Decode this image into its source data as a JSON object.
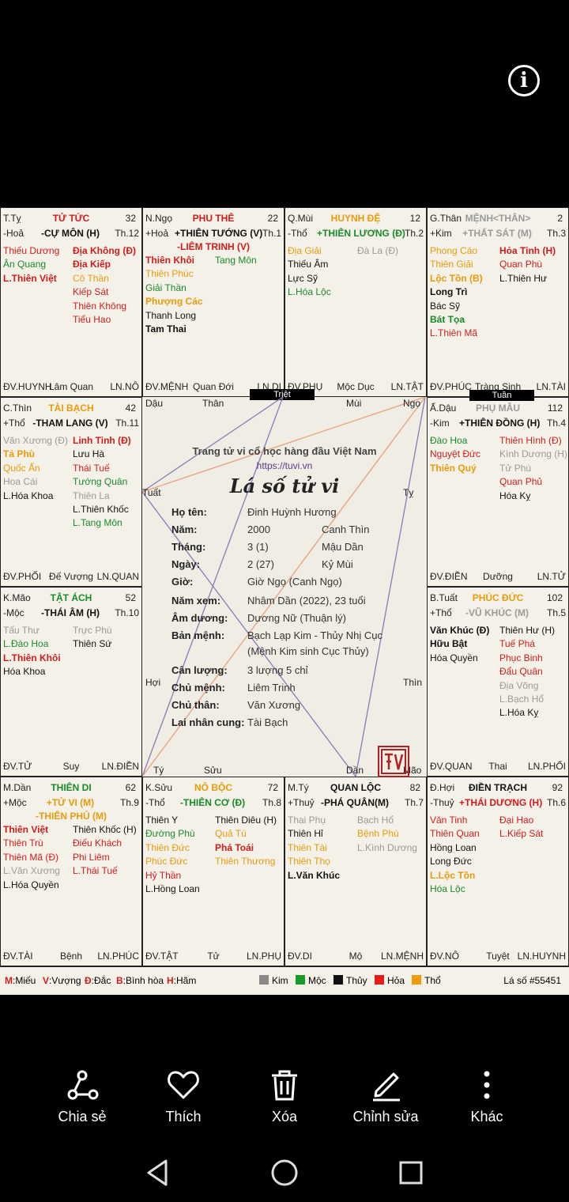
{
  "info_icon": "info-icon",
  "markers": {
    "triet": "Triệt",
    "tuan": "Tuần"
  },
  "cells": [
    {
      "branch": "T.Tỵ",
      "element": "-Hoả",
      "palace": "TỬ TỨC",
      "palace_color": "red",
      "num": "32",
      "th": "Th.12",
      "main": "-CỰ MÔN (H)",
      "main_color": "black",
      "left": [
        {
          "t": "Thiếu Dương",
          "c": "red"
        },
        {
          "t": "Ân Quang",
          "c": "green"
        },
        {
          "t": "L.Thiên Việt",
          "c": "red",
          "b": true
        }
      ],
      "right": [
        {
          "t": "Địa Không (Đ)",
          "c": "red",
          "b": true
        },
        {
          "t": "Địa Kiếp",
          "c": "red",
          "b": true
        },
        {
          "t": "Cô Thần",
          "c": "orange"
        },
        {
          "t": "Kiếp Sát",
          "c": "red"
        },
        {
          "t": "Thiên Không",
          "c": "red"
        },
        {
          "t": "Tiểu Hao",
          "c": "red"
        }
      ],
      "dv": "ĐV.HUYNH",
      "mid": "Lâm Quan",
      "ln": "LN.NÔ"
    },
    {
      "branch": "N.Ngọ",
      "element": "+Hoả",
      "palace": "PHU THÊ",
      "palace_color": "red",
      "num": "22",
      "th": "Th.1",
      "main": "+THIÊN TƯỚNG (V)",
      "main_color": "black",
      "main2": "-LIÊM TRINH (V)",
      "main2_color": "red",
      "left": [
        {
          "t": "Thiên Khôi",
          "c": "red",
          "b": true
        },
        {
          "t": "Thiên Phúc",
          "c": "orange"
        },
        {
          "t": "Giải Thần",
          "c": "green"
        },
        {
          "t": "Phượng Các",
          "c": "orange",
          "b": true
        },
        {
          "t": "Thanh Long",
          "c": "black"
        },
        {
          "t": "Tam Thai",
          "c": "black",
          "b": true
        }
      ],
      "right": [
        {
          "t": "Tang Môn",
          "c": "green"
        }
      ],
      "dv": "ĐV.MỆNH",
      "mid": "Quan Đới",
      "ln": "LN.DI"
    },
    {
      "branch": "Q.Mùi",
      "element": "-Thổ",
      "palace": "HUYNH ĐỆ",
      "palace_color": "orange",
      "num": "12",
      "th": "Th.2",
      "main": "+THIÊN LƯƠNG (Đ)",
      "main_color": "green",
      "left": [
        {
          "t": "Địa Giải",
          "c": "orange"
        },
        {
          "t": "Thiếu Âm",
          "c": "black"
        },
        {
          "t": "Lực Sỹ",
          "c": "black"
        },
        {
          "t": "L.Hóa Lộc",
          "c": "green"
        }
      ],
      "right": [
        {
          "t": "Đà La (Đ)",
          "c": "gray"
        }
      ],
      "dv": "ĐV.PHỤ",
      "mid": "Mộc Dục",
      "ln": "LN.TẬT"
    },
    {
      "branch": "G.Thân",
      "element": "+Kim",
      "palace": "MỆNH<THÂN>",
      "palace_color": "gray",
      "num": "2",
      "th": "Th.3",
      "main": "+THẤT SÁT (M)",
      "main_color": "gray",
      "left": [
        {
          "t": "Phong Cáo",
          "c": "orange"
        },
        {
          "t": "Thiên Giải",
          "c": "orange"
        },
        {
          "t": "Lộc Tồn (B)",
          "c": "orange",
          "b": true
        },
        {
          "t": "Long Trì",
          "c": "black",
          "b": true
        },
        {
          "t": "Bác Sỹ",
          "c": "black"
        },
        {
          "t": "Bát Tọa",
          "c": "green",
          "b": true
        },
        {
          "t": "L.Thiên Mã",
          "c": "red"
        }
      ],
      "right": [
        {
          "t": "Hỏa Tinh (H)",
          "c": "red",
          "b": true
        },
        {
          "t": "Quan Phù",
          "c": "red"
        },
        {
          "t": "L.Thiên Hư",
          "c": "black"
        }
      ],
      "dv": "ĐV.PHÚC",
      "mid": "Tràng Sinh",
      "ln": "LN.TÀI"
    },
    {
      "branch": "C.Thìn",
      "element": "+Thổ",
      "palace": "TÀI BẠCH",
      "palace_color": "orange",
      "num": "42",
      "th": "Th.11",
      "main": "-THAM LANG (V)",
      "main_color": "black",
      "left": [
        {
          "t": "Văn Xương (Đ)",
          "c": "gray"
        },
        {
          "t": "Tả Phù",
          "c": "orange",
          "b": true
        },
        {
          "t": "Quốc Ấn",
          "c": "orange"
        },
        {
          "t": "Hoa Cái",
          "c": "gray"
        },
        {
          "t": "L.Hóa Khoa",
          "c": "black"
        }
      ],
      "right": [
        {
          "t": "Linh Tinh (Đ)",
          "c": "red",
          "b": true
        },
        {
          "t": "Lưu Hà",
          "c": "black"
        },
        {
          "t": "Thái Tuế",
          "c": "red"
        },
        {
          "t": "Tướng Quân",
          "c": "green"
        },
        {
          "t": "Thiên La",
          "c": "gray"
        },
        {
          "t": "L.Thiên Khốc",
          "c": "black"
        },
        {
          "t": "L.Tang Môn",
          "c": "green"
        }
      ],
      "dv": "ĐV.PHỐI",
      "mid": "Đế Vượng",
      "ln": "LN.QUAN"
    },
    {
      "branch": "Ấ.Dậu",
      "element": "-Kim",
      "palace": "PHỤ MẪU",
      "palace_color": "gray",
      "num": "112",
      "th": "Th.4",
      "main": "+THIÊN ĐỒNG (H)",
      "main_color": "black",
      "left": [
        {
          "t": "Đào Hoa",
          "c": "green"
        },
        {
          "t": "Nguyệt Đức",
          "c": "red"
        },
        {
          "t": "Thiên Quý",
          "c": "orange",
          "b": true
        }
      ],
      "right": [
        {
          "t": "Thiên Hình (Đ)",
          "c": "red"
        },
        {
          "t": "Kình Dương (H)",
          "c": "gray"
        },
        {
          "t": "Tử Phù",
          "c": "gray"
        },
        {
          "t": "Quan Phủ",
          "c": "red"
        },
        {
          "t": "Hóa Kỵ",
          "c": "black"
        }
      ],
      "dv": "ĐV.ĐIỀN",
      "mid": "Dưỡng",
      "ln": "LN.TỬ"
    },
    {
      "branch": "K.Mão",
      "element": "-Mộc",
      "palace": "TẬT ÁCH",
      "palace_color": "green",
      "num": "52",
      "th": "Th.10",
      "main": "-THÁI ÂM (H)",
      "main_color": "black",
      "left": [
        {
          "t": "Tấu Thư",
          "c": "gray"
        },
        {
          "t": "L.Đào Hoa",
          "c": "green"
        },
        {
          "t": "L.Thiên Khôi",
          "c": "red",
          "b": true
        },
        {
          "t": "Hóa Khoa",
          "c": "black"
        }
      ],
      "right": [
        {
          "t": "Trực Phù",
          "c": "gray"
        },
        {
          "t": "Thiên Sứ",
          "c": "black"
        }
      ],
      "dv": "ĐV.TỬ",
      "mid": "Suy",
      "ln": "LN.ĐIỀN"
    },
    {
      "branch": "B.Tuất",
      "element": "+Thổ",
      "palace": "PHÚC ĐỨC",
      "palace_color": "orange",
      "num": "102",
      "th": "Th.5",
      "main": "-VŨ KHÚC (M)",
      "main_color": "gray",
      "left": [
        {
          "t": "Văn Khúc (Đ)",
          "c": "black",
          "b": true
        },
        {
          "t": "Hữu Bật",
          "c": "black",
          "b": true
        },
        {
          "t": "Hóa Quyền",
          "c": "black"
        }
      ],
      "right": [
        {
          "t": "Thiên Hư (H)",
          "c": "black"
        },
        {
          "t": "Tuế Phá",
          "c": "red"
        },
        {
          "t": "Phục Binh",
          "c": "red"
        },
        {
          "t": "Đẩu Quân",
          "c": "red"
        },
        {
          "t": "Địa Võng",
          "c": "gray"
        },
        {
          "t": "L.Bạch Hổ",
          "c": "gray"
        },
        {
          "t": "L.Hóa Kỵ",
          "c": "black"
        }
      ],
      "dv": "ĐV.QUAN",
      "mid": "Thai",
      "ln": "LN.PHỐI"
    },
    {
      "branch": "M.Dần",
      "element": "+Mộc",
      "palace": "THIÊN DI",
      "palace_color": "green",
      "num": "62",
      "th": "Th.9",
      "main": "+TỬ VI (M)",
      "main_color": "orange",
      "main2": "-THIÊN PHỦ (M)",
      "main2_color": "orange",
      "left": [
        {
          "t": "Thiên Việt",
          "c": "red",
          "b": true
        },
        {
          "t": "Thiên Trù",
          "c": "red"
        },
        {
          "t": "Thiên Mã (Đ)",
          "c": "red"
        },
        {
          "t": "L.Văn Xương",
          "c": "gray"
        },
        {
          "t": "L.Hóa Quyền",
          "c": "black"
        }
      ],
      "right": [
        {
          "t": "Thiên Khốc (H)",
          "c": "black"
        },
        {
          "t": "Điếu Khách",
          "c": "red"
        },
        {
          "t": "Phi Liêm",
          "c": "red"
        },
        {
          "t": "L.Thái Tuế",
          "c": "red"
        }
      ],
      "dv": "ĐV.TÀI",
      "mid": "Bệnh",
      "ln": "LN.PHÚC"
    },
    {
      "branch": "K.Sửu",
      "element": "-Thổ",
      "palace": "NÔ BỘC",
      "palace_color": "orange",
      "num": "72",
      "th": "Th.8",
      "main": "-THIÊN CƠ (Đ)",
      "main_color": "green",
      "left": [
        {
          "t": "Thiên Y",
          "c": "black"
        },
        {
          "t": "Đường Phù",
          "c": "green"
        },
        {
          "t": "Thiên Đức",
          "c": "orange"
        },
        {
          "t": "Phúc Đức",
          "c": "orange"
        },
        {
          "t": "Hỷ Thần",
          "c": "red"
        },
        {
          "t": "L.Hồng Loan",
          "c": "black"
        }
      ],
      "right": [
        {
          "t": "Thiên Diêu (H)",
          "c": "black"
        },
        {
          "t": "Quả Tú",
          "c": "orange"
        },
        {
          "t": "Phá Toái",
          "c": "red",
          "b": true
        },
        {
          "t": "Thiên Thương",
          "c": "orange"
        }
      ],
      "dv": "ĐV.TẬT",
      "mid": "Tử",
      "ln": "LN.PHỤ"
    },
    {
      "branch": "M.Tý",
      "element": "+Thuỷ",
      "palace": "QUAN LỘC",
      "palace_color": "black",
      "num": "82",
      "th": "Th.7",
      "main": "-PHÁ QUÂN(M)",
      "main_color": "black",
      "left": [
        {
          "t": "Thai Phụ",
          "c": "gray"
        },
        {
          "t": "Thiên Hỉ",
          "c": "black"
        },
        {
          "t": "Thiên Tài",
          "c": "orange"
        },
        {
          "t": "Thiên Thọ",
          "c": "orange"
        },
        {
          "t": "L.Văn Khúc",
          "c": "black",
          "b": true
        }
      ],
      "right": [
        {
          "t": "Bạch Hổ",
          "c": "gray"
        },
        {
          "t": "Bệnh Phù",
          "c": "orange"
        },
        {
          "t": "L.Kình Dương",
          "c": "gray"
        }
      ],
      "dv": "ĐV.DI",
      "mid": "Mộ",
      "ln": "LN.MỆNH"
    },
    {
      "branch": "Đ.Hợi",
      "element": "-Thuỷ",
      "palace": "ĐIỀN TRẠCH",
      "palace_color": "black",
      "num": "92",
      "th": "Th.6",
      "main": "+THÁI DƯƠNG (H)",
      "main_color": "red",
      "left": [
        {
          "t": "Văn Tinh",
          "c": "red"
        },
        {
          "t": "Thiên Quan",
          "c": "red"
        },
        {
          "t": "Hồng Loan",
          "c": "black"
        },
        {
          "t": "Long Đức",
          "c": "black"
        },
        {
          "t": "L.Lộc Tồn",
          "c": "orange",
          "b": true
        },
        {
          "t": "Hóa Lộc",
          "c": "green"
        }
      ],
      "right": [
        {
          "t": "Đại Hao",
          "c": "red"
        },
        {
          "t": "L.Kiếp Sát",
          "c": "red"
        }
      ],
      "dv": "ĐV.NÔ",
      "mid": "Tuyệt",
      "ln": "LN.HUYNH"
    }
  ],
  "center": {
    "branches": {
      "dau": "Dậu",
      "than": "Thân",
      "mui": "Mùi",
      "ngo": "Ngọ",
      "tuat": "Tuất",
      "ty_top": "Tỵ",
      "hoi": "Hợi",
      "thin": "Thìn",
      "ty_bottom": "Tý",
      "suu": "Sửu",
      "dan": "Dần",
      "mao": "Mão"
    },
    "site": "Trang tử vi cổ học hàng đầu Việt Nam",
    "url": "https://tuvi.vn",
    "heading": "Lá số tử vi",
    "rows": [
      {
        "label": "Họ tên:",
        "value": "Đinh Huỳnh Hương",
        "value2": ""
      },
      {
        "label": "Năm:",
        "value": "2000",
        "value2": "Canh Thìn"
      },
      {
        "label": "Tháng:",
        "value": "3 (1)",
        "value2": "Mậu Dần"
      },
      {
        "label": "Ngày:",
        "value": "2 (27)",
        "value2": "Kỷ Mùi"
      },
      {
        "label": "Giờ:",
        "value": "Giờ Ngọ (Canh Ngọ)",
        "value2": ""
      },
      {
        "label": "Năm xem:",
        "value": "Nhâm Dần (2022), 23 tuổi",
        "value2": ""
      },
      {
        "label": "Âm dương:",
        "value": "Dương Nữ (Thuận lý)",
        "value2": ""
      },
      {
        "label": "Bản mệnh:",
        "value": "Bạch Lạp Kim - Thủy Nhị Cục",
        "value2": ""
      },
      {
        "label": "",
        "value": "(Mệnh Kim sinh Cục Thủy)",
        "value2": ""
      },
      {
        "label": "Cân lượng:",
        "value": "3 lượng 5 chỉ",
        "value2": ""
      },
      {
        "label": "Chủ mệnh:",
        "value": "Liêm Trinh",
        "value2": ""
      },
      {
        "label": "Chủ thân:",
        "value": "Văn Xương",
        "value2": ""
      },
      {
        "label": "Lai nhân cung:",
        "value": "Tài Bạch",
        "value2": ""
      }
    ],
    "seal_text": "TVH",
    "lines_color_purple": "#8a7ab8",
    "lines_color_orange": "#e8a07a"
  },
  "legend": {
    "m": "M",
    "m_text": ":Miếu",
    "v": "V",
    "v_text": ":Vượng",
    "d": "Đ",
    "d_text": ":Đắc",
    "b": "B",
    "b_text": ":Bình hòa",
    "h": "H",
    "h_text": ":Hãm",
    "kim": "Kim",
    "moc": "Mộc",
    "thuy": "Thủy",
    "hoa": "Hỏa",
    "tho": "Thổ",
    "chart_id": "Lá số #55451",
    "colors": {
      "kim": "#8a8a8a",
      "moc": "#1a9a2a",
      "thuy": "#111111",
      "hoa": "#e51c1c",
      "tho": "#f09a0c"
    }
  },
  "actions": [
    {
      "label": "Chia sẻ",
      "icon": "share-icon"
    },
    {
      "label": "Thích",
      "icon": "heart-icon"
    },
    {
      "label": "Xóa",
      "icon": "trash-icon"
    },
    {
      "label": "Chỉnh sửa",
      "icon": "edit-icon"
    },
    {
      "label": "Khác",
      "icon": "more-icon"
    }
  ],
  "nav": [
    "back-icon",
    "home-icon",
    "recents-icon"
  ]
}
